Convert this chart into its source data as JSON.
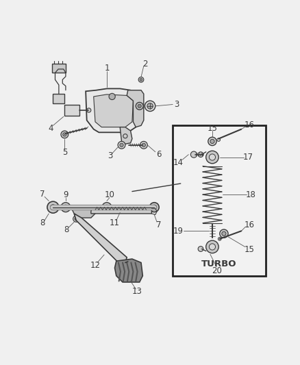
{
  "background_color": "#f0f0f0",
  "line_color": "#3a3a3a",
  "label_color": "#3a3a3a",
  "figsize": [
    4.38,
    5.33
  ],
  "dpi": 100,
  "xlim": [
    0,
    438
  ],
  "ylim": [
    0,
    533
  ]
}
